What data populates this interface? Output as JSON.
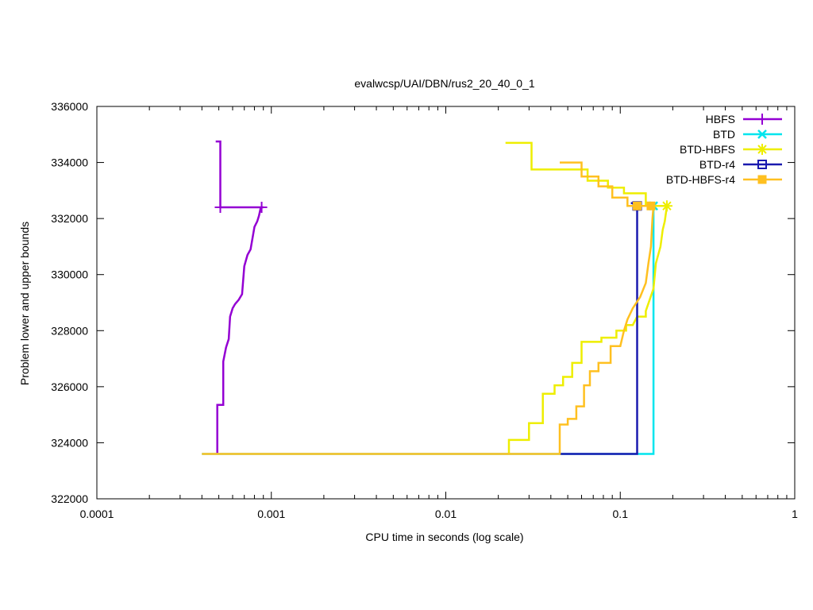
{
  "chart_data": {
    "type": "line",
    "title": "evalwcsp/UAI/DBN/rus2_20_40_0_1",
    "xlabel": "CPU time in seconds (log scale)",
    "ylabel": "Problem lower and upper bounds",
    "x_scale": "log",
    "xlim": [
      0.0001,
      1
    ],
    "ylim": [
      322000,
      336000
    ],
    "x_ticks": [
      {
        "value": 0.0001,
        "label": "0.0001"
      },
      {
        "value": 0.001,
        "label": "0.001"
      },
      {
        "value": 0.01,
        "label": "0.01"
      },
      {
        "value": 0.1,
        "label": "0.1"
      },
      {
        "value": 1,
        "label": "1"
      }
    ],
    "y_ticks": [
      {
        "value": 322000,
        "label": "322000"
      },
      {
        "value": 324000,
        "label": "324000"
      },
      {
        "value": 326000,
        "label": "326000"
      },
      {
        "value": 328000,
        "label": "328000"
      },
      {
        "value": 330000,
        "label": "330000"
      },
      {
        "value": 332000,
        "label": "332000"
      },
      {
        "value": 334000,
        "label": "334000"
      },
      {
        "value": 336000,
        "label": "336000"
      }
    ],
    "grid": false,
    "legend_position": "top-right",
    "series": [
      {
        "name": "HBFS",
        "color": "#9400d3",
        "marker": "plus",
        "upper": [
          [
            0.00048,
            334750
          ],
          [
            0.00051,
            334750
          ],
          [
            0.00051,
            332400
          ],
          [
            0.0009,
            332400
          ]
        ],
        "lower": [
          [
            0.00049,
            323600
          ],
          [
            0.00049,
            325350
          ],
          [
            0.00053,
            325350
          ],
          [
            0.00053,
            326900
          ],
          [
            0.00055,
            327400
          ],
          [
            0.00057,
            327700
          ],
          [
            0.00058,
            328500
          ],
          [
            0.0006,
            328800
          ],
          [
            0.00062,
            328950
          ],
          [
            0.00065,
            329100
          ],
          [
            0.00068,
            329300
          ],
          [
            0.0007,
            330300
          ],
          [
            0.00073,
            330700
          ],
          [
            0.00076,
            330900
          ],
          [
            0.0008,
            331700
          ],
          [
            0.00083,
            331900
          ],
          [
            0.00085,
            332100
          ],
          [
            0.00087,
            332400
          ]
        ],
        "markers": [
          [
            0.00051,
            332400
          ],
          [
            0.00088,
            332400
          ]
        ]
      },
      {
        "name": "BTD",
        "color": "#00e5ee",
        "marker": "x",
        "upper": [
          [
            0.125,
            332450
          ],
          [
            0.155,
            332450
          ]
        ],
        "lower": [
          [
            0.0004,
            323600
          ],
          [
            0.155,
            323600
          ],
          [
            0.155,
            332450
          ]
        ],
        "markers": [
          [
            0.155,
            332450
          ]
        ]
      },
      {
        "name": "BTD-HBFS",
        "color": "#eeee00",
        "marker": "star",
        "upper": [
          [
            0.022,
            334700
          ],
          [
            0.031,
            334700
          ],
          [
            0.031,
            333750
          ],
          [
            0.065,
            333750
          ],
          [
            0.065,
            333350
          ],
          [
            0.085,
            333350
          ],
          [
            0.085,
            333100
          ],
          [
            0.105,
            333100
          ],
          [
            0.105,
            332900
          ],
          [
            0.14,
            332900
          ],
          [
            0.14,
            332450
          ],
          [
            0.185,
            332450
          ]
        ],
        "lower": [
          [
            0.023,
            323600
          ],
          [
            0.023,
            324100
          ],
          [
            0.03,
            324100
          ],
          [
            0.03,
            324700
          ],
          [
            0.036,
            324700
          ],
          [
            0.036,
            325750
          ],
          [
            0.042,
            325750
          ],
          [
            0.042,
            326050
          ],
          [
            0.047,
            326050
          ],
          [
            0.047,
            326350
          ],
          [
            0.053,
            326350
          ],
          [
            0.053,
            326850
          ],
          [
            0.06,
            326850
          ],
          [
            0.06,
            327600
          ],
          [
            0.078,
            327600
          ],
          [
            0.078,
            327750
          ],
          [
            0.095,
            327750
          ],
          [
            0.095,
            328000
          ],
          [
            0.108,
            328000
          ],
          [
            0.108,
            328200
          ],
          [
            0.118,
            328200
          ],
          [
            0.125,
            328500
          ],
          [
            0.14,
            328500
          ],
          [
            0.14,
            328700
          ],
          [
            0.155,
            329500
          ],
          [
            0.16,
            330400
          ],
          [
            0.17,
            331000
          ],
          [
            0.175,
            331600
          ],
          [
            0.18,
            331900
          ],
          [
            0.185,
            332450
          ]
        ],
        "markers": [
          [
            0.185,
            332450
          ]
        ]
      },
      {
        "name": "BTD-r4",
        "color": "#1a1aaf",
        "marker": "square",
        "upper": [
          [
            0.115,
            332550
          ],
          [
            0.125,
            332550
          ]
        ],
        "lower": [
          [
            0.045,
            323600
          ],
          [
            0.125,
            323600
          ],
          [
            0.125,
            332550
          ]
        ],
        "markers": [
          [
            0.125,
            332450
          ]
        ]
      },
      {
        "name": "BTD-HBFS-r4",
        "color": "#ffc020",
        "marker": "filled-square",
        "upper": [
          [
            0.045,
            334000
          ],
          [
            0.06,
            334000
          ],
          [
            0.06,
            333500
          ],
          [
            0.075,
            333500
          ],
          [
            0.075,
            333150
          ],
          [
            0.09,
            333150
          ],
          [
            0.09,
            332750
          ],
          [
            0.11,
            332750
          ],
          [
            0.11,
            332450
          ],
          [
            0.15,
            332450
          ]
        ],
        "lower": [
          [
            0.0004,
            323600
          ],
          [
            0.045,
            323600
          ],
          [
            0.045,
            324650
          ],
          [
            0.05,
            324650
          ],
          [
            0.05,
            324850
          ],
          [
            0.056,
            324850
          ],
          [
            0.056,
            325300
          ],
          [
            0.062,
            325300
          ],
          [
            0.062,
            326050
          ],
          [
            0.067,
            326050
          ],
          [
            0.067,
            326550
          ],
          [
            0.075,
            326550
          ],
          [
            0.075,
            326850
          ],
          [
            0.088,
            326850
          ],
          [
            0.088,
            327450
          ],
          [
            0.1,
            327450
          ],
          [
            0.105,
            328000
          ],
          [
            0.11,
            328400
          ],
          [
            0.118,
            328800
          ],
          [
            0.13,
            329200
          ],
          [
            0.14,
            329700
          ],
          [
            0.145,
            330400
          ],
          [
            0.15,
            331000
          ],
          [
            0.153,
            332000
          ],
          [
            0.155,
            332450
          ]
        ],
        "markers": [
          [
            0.125,
            332450
          ],
          [
            0.15,
            332450
          ]
        ]
      }
    ]
  }
}
